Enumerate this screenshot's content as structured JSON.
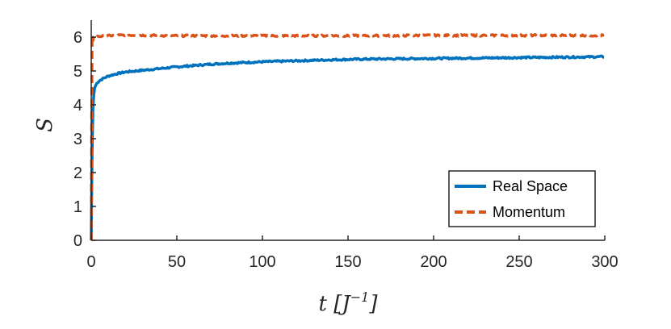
{
  "chart_data": {
    "type": "line",
    "xlabel": "t [J^-1]",
    "xlabel_parts": {
      "main": "t [J",
      "sup": "−1",
      "close": "]"
    },
    "ylabel": "S",
    "xlim": [
      0,
      300
    ],
    "ylim": [
      0,
      6.5
    ],
    "xticks": [
      0,
      50,
      100,
      150,
      200,
      250,
      300
    ],
    "yticks": [
      0,
      1,
      2,
      3,
      4,
      5,
      6
    ],
    "grid": false,
    "legend_position": "bottom-right",
    "series": [
      {
        "name": "Real Space",
        "color": "#0072BD",
        "style": "solid",
        "x": [
          0,
          0.5,
          1,
          1.5,
          2,
          3,
          4,
          5,
          7,
          10,
          15,
          20,
          30,
          40,
          50,
          60,
          70,
          80,
          90,
          100,
          120,
          140,
          160,
          180,
          200,
          220,
          240,
          260,
          280,
          300
        ],
        "y": [
          0,
          2.6,
          3.9,
          4.3,
          4.5,
          4.62,
          4.68,
          4.72,
          4.78,
          4.85,
          4.92,
          4.97,
          5.02,
          5.07,
          5.12,
          5.16,
          5.2,
          5.23,
          5.25,
          5.27,
          5.3,
          5.33,
          5.35,
          5.36,
          5.37,
          5.38,
          5.39,
          5.4,
          5.41,
          5.42
        ]
      },
      {
        "name": "Momentum",
        "color": "#D95319",
        "style": "dashed",
        "x": [
          0,
          0.5,
          1,
          1.5,
          2,
          4,
          10,
          20,
          50,
          100,
          150,
          200,
          250,
          300
        ],
        "y": [
          0,
          6.05,
          5.9,
          6.02,
          6.0,
          6.02,
          6.04,
          6.06,
          6.04,
          6.04,
          6.04,
          6.05,
          6.05,
          6.05
        ]
      }
    ]
  }
}
